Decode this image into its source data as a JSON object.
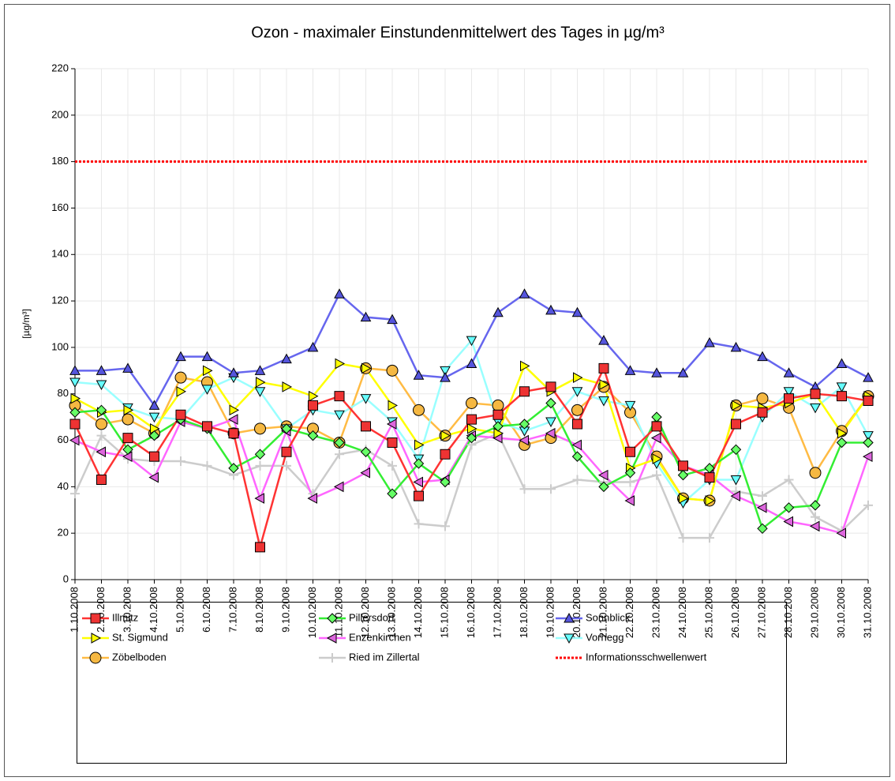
{
  "chart_data": {
    "type": "line",
    "title": "Ozon -  maximaler Einstundenmittelwert des Tages in µg/m³",
    "y_label": "[µg/m³]",
    "categories": [
      "1.10.2008",
      "2.10.2008",
      "3.10.2008",
      "4.10.2008",
      "5.10.2008",
      "6.10.2008",
      "7.10.2008",
      "8.10.2008",
      "9.10.2008",
      "10.10.2008",
      "11.10.2008",
      "12.10.2008",
      "13.10.2008",
      "14.10.2008",
      "15.10.2008",
      "16.10.2008",
      "17.10.2008",
      "18.10.2008",
      "19.10.2008",
      "20.10.2008",
      "21.10.2008",
      "22.10.2008",
      "23.10.2008",
      "24.10.2008",
      "25.10.2008",
      "26.10.2008",
      "27.10.2008",
      "28.10.2008",
      "29.10.2008",
      "30.10.2008",
      "31.10.2008"
    ],
    "ylim": [
      0,
      220
    ],
    "yticks": [
      0,
      20,
      40,
      60,
      80,
      100,
      120,
      140,
      160,
      180,
      200,
      220
    ],
    "grid": true,
    "series": [
      {
        "name": "Illmitz",
        "color": "#ff3333",
        "marker_color": "#ee3333",
        "marker": "square",
        "values": [
          67,
          43,
          61,
          53,
          71,
          66,
          63,
          14,
          55,
          75,
          79,
          66,
          59,
          36,
          54,
          69,
          71,
          81,
          83,
          67,
          91,
          55,
          66,
          49,
          44,
          67,
          72,
          78,
          80,
          79,
          77
        ]
      },
      {
        "name": "Pillersdorf",
        "color": "#33ee33",
        "marker_color": "#66ff66",
        "marker": "diamond",
        "values": [
          72,
          73,
          56,
          62,
          69,
          65,
          48,
          54,
          65,
          62,
          59,
          55,
          37,
          50,
          42,
          61,
          66,
          67,
          76,
          53,
          40,
          46,
          70,
          45,
          48,
          56,
          22,
          31,
          32,
          59,
          59
        ]
      },
      {
        "name": "Sonnblick",
        "color": "#6666ee",
        "marker_color": "#5555dd",
        "marker": "up",
        "values": [
          90,
          90,
          91,
          75,
          96,
          96,
          89,
          90,
          95,
          100,
          123,
          113,
          112,
          88,
          87,
          93,
          115,
          123,
          116,
          115,
          103,
          90,
          89,
          89,
          102,
          100,
          96,
          89,
          83,
          93,
          87
        ]
      },
      {
        "name": "St. Sigmund",
        "color": "#ffff00",
        "marker_color": "#ffff00",
        "marker": "right",
        "values": [
          78,
          72,
          73,
          65,
          81,
          90,
          73,
          85,
          83,
          79,
          93,
          91,
          75,
          58,
          62,
          65,
          63,
          92,
          81,
          87,
          84,
          48,
          52,
          35,
          34,
          75,
          74,
          76,
          80,
          63,
          79
        ]
      },
      {
        "name": "Enzenkirchen",
        "color": "#ff66ff",
        "marker_color": "#dd66dd",
        "marker": "left",
        "values": [
          60,
          55,
          53,
          44,
          68,
          65,
          69,
          35,
          64,
          35,
          40,
          46,
          67,
          42,
          43,
          62,
          61,
          60,
          63,
          58,
          45,
          34,
          61,
          49,
          45,
          36,
          31,
          25,
          23,
          20,
          53
        ]
      },
      {
        "name": "Vorhegg",
        "color": "#99ffff",
        "marker_color": "#66ffff",
        "marker": "down",
        "values": [
          85,
          84,
          74,
          70,
          69,
          82,
          87,
          81,
          65,
          73,
          71,
          78,
          68,
          52,
          90,
          103,
          68,
          64,
          68,
          81,
          77,
          75,
          50,
          33,
          43,
          43,
          70,
          81,
          74,
          83,
          62
        ]
      },
      {
        "name": "Zöbelboden",
        "color": "#ffbb44",
        "marker_color": "#f5b842",
        "marker": "circle",
        "values": [
          75,
          67,
          69,
          63,
          87,
          85,
          63,
          65,
          66,
          65,
          59,
          91,
          90,
          73,
          62,
          76,
          75,
          58,
          61,
          73,
          83,
          72,
          53,
          35,
          34,
          75,
          78,
          74,
          46,
          64,
          79
        ]
      },
      {
        "name": "Ried im Zillertal",
        "color": "#cccccc",
        "marker_color": "#cccccc",
        "marker": "plus",
        "values": [
          37,
          62,
          52,
          51,
          51,
          49,
          45,
          49,
          49,
          37,
          54,
          56,
          49,
          24,
          23,
          58,
          63,
          39,
          39,
          43,
          42,
          42,
          45,
          18,
          18,
          38,
          36,
          43,
          27,
          21,
          32
        ]
      }
    ],
    "reference_line": {
      "name": "Informationsschwellenwert",
      "value": 180,
      "color": "#ff0000"
    }
  }
}
